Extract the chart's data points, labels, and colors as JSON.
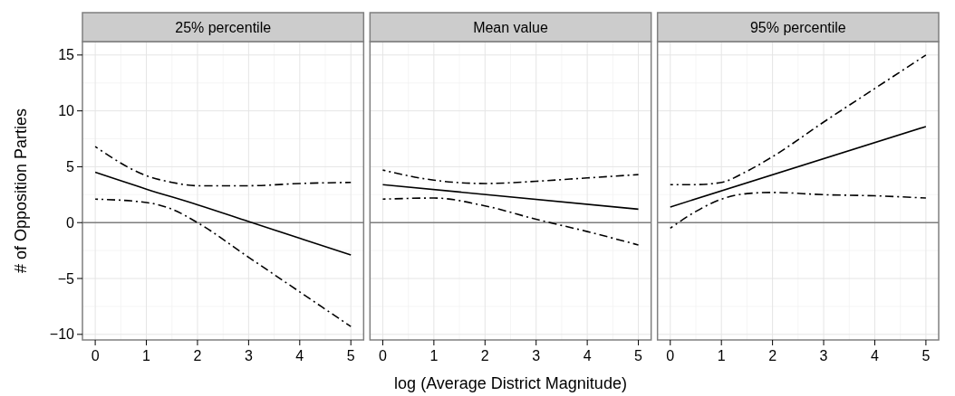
{
  "chart_data": [
    {
      "type": "line",
      "title": "25% percentile",
      "ylabel": "# of Opposition Parties",
      "xlim": [
        -0.25,
        5.25
      ],
      "xticks": [
        0,
        1,
        2,
        3,
        4,
        5
      ],
      "ylim": [
        -10.5,
        16.2
      ],
      "yticks": [
        -10,
        -5,
        0,
        5,
        10,
        15
      ],
      "grid": true,
      "ref_lines": [
        {
          "axis": "y",
          "value": 0,
          "color": "#7f7f7f"
        }
      ],
      "series": [
        {
          "color": "#000000",
          "line_style": "solid",
          "x": [
            0,
            1,
            2,
            3,
            4,
            5
          ],
          "values": [
            4.5,
            3.0,
            1.6,
            0.1,
            -1.4,
            -2.9
          ]
        },
        {
          "color": "#000000",
          "line_style": "dashed",
          "x": [
            0,
            1,
            1.5,
            2,
            3,
            4,
            5
          ],
          "values": [
            6.8,
            4.2,
            3.6,
            3.3,
            3.3,
            3.5,
            3.6
          ]
        },
        {
          "color": "#000000",
          "line_style": "dashed",
          "x": [
            0,
            1,
            1.5,
            2,
            3,
            4,
            5
          ],
          "values": [
            2.1,
            1.8,
            1.2,
            0,
            -3.1,
            -6.2,
            -9.3
          ]
        }
      ]
    },
    {
      "type": "line",
      "title": "Mean value",
      "xlabel": "log (Average District Magnitude)",
      "tick_labels": "x",
      "xlim": [
        -0.25,
        5.25
      ],
      "xticks": [
        0,
        1,
        2,
        3,
        4,
        5
      ],
      "ylim": [
        -10.5,
        16.2
      ],
      "yticks": [
        -10,
        -5,
        0,
        5,
        10,
        15
      ],
      "grid": true,
      "ref_lines": [
        {
          "axis": "y",
          "value": 0,
          "color": "#7f7f7f"
        }
      ],
      "series": [
        {
          "color": "#000000",
          "line_style": "solid",
          "x": [
            0,
            5
          ],
          "values": [
            3.4,
            1.2
          ]
        },
        {
          "color": "#000000",
          "line_style": "dashed",
          "x": [
            0,
            1,
            2,
            3,
            4,
            5
          ],
          "values": [
            4.7,
            3.8,
            3.5,
            3.7,
            4.0,
            4.3
          ]
        },
        {
          "color": "#000000",
          "line_style": "dashed",
          "x": [
            0,
            1,
            2,
            3,
            4,
            5
          ],
          "values": [
            2.1,
            2.2,
            1.5,
            0.3,
            -0.8,
            -2.0
          ]
        }
      ]
    },
    {
      "type": "line",
      "title": "95% percentile",
      "tick_labels": "x",
      "xlim": [
        -0.25,
        5.25
      ],
      "xticks": [
        0,
        1,
        2,
        3,
        4,
        5
      ],
      "ylim": [
        -10.5,
        16.2
      ],
      "yticks": [
        -10,
        -5,
        0,
        5,
        10,
        15
      ],
      "grid": true,
      "ref_lines": [
        {
          "axis": "y",
          "value": 0,
          "color": "#7f7f7f"
        }
      ],
      "series": [
        {
          "color": "#000000",
          "line_style": "solid",
          "x": [
            0,
            5
          ],
          "values": [
            1.4,
            8.6
          ]
        },
        {
          "color": "#000000",
          "line_style": "dashed",
          "x": [
            0,
            0.5,
            1,
            1.5,
            2,
            3,
            4,
            5
          ],
          "values": [
            3.4,
            3.4,
            3.6,
            4.6,
            5.9,
            9.0,
            12.0,
            15.0
          ]
        },
        {
          "color": "#000000",
          "line_style": "dashed",
          "x": [
            0,
            0.5,
            1,
            1.5,
            2,
            3,
            4,
            5
          ],
          "values": [
            -0.5,
            1.0,
            2.1,
            2.6,
            2.7,
            2.5,
            2.4,
            2.2
          ]
        }
      ]
    }
  ]
}
